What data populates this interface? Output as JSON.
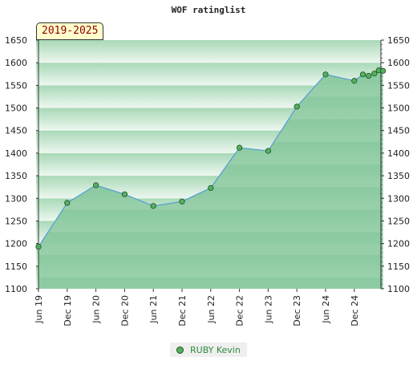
{
  "chart_data": {
    "type": "area",
    "title": "WOF ratinglist",
    "period": "2019-2025",
    "ylim": [
      1100,
      1650
    ],
    "y_ticks": [
      1100,
      1150,
      1200,
      1250,
      1300,
      1350,
      1400,
      1450,
      1500,
      1550,
      1600,
      1650
    ],
    "x_tick_labels": [
      "Jun 19",
      "Dec 19",
      "Jun 20",
      "Dec 20",
      "Jun 21",
      "Dec 21",
      "Jun 22",
      "Dec 22",
      "Jun 23",
      "Dec 23",
      "Jun 24",
      "Dec 24"
    ],
    "series": [
      {
        "name": "RUBY Kevin",
        "x": [
          0,
          1,
          2,
          3,
          4,
          5,
          6,
          7,
          8,
          9,
          10,
          11,
          11.3,
          11.5,
          11.7,
          11.85,
          12.0
        ],
        "values": [
          1193,
          1290,
          1329,
          1309,
          1283,
          1293,
          1323,
          1412,
          1405,
          1503,
          1574,
          1560,
          1574,
          1571,
          1576,
          1583,
          1582
        ]
      }
    ],
    "legend_position": "bottom",
    "colors": {
      "area": "#7fc496",
      "line": "#5aa0d0",
      "marker": "#55b060",
      "band_light": "#e6f3ea",
      "band_dark": "#9bd3ac"
    }
  }
}
